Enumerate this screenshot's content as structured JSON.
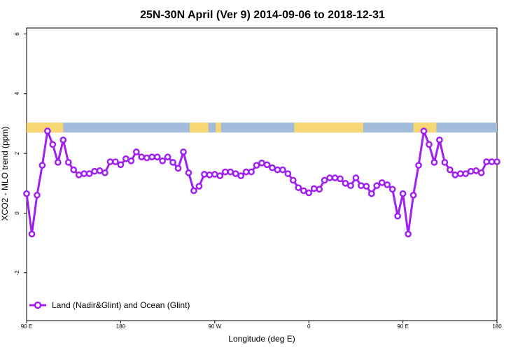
{
  "chart_data": {
    "type": "line",
    "title": "25N-30N April (Ver 9)   2014-09-06 to 2018-12-31",
    "xlabel": "Longitude (deg E)",
    "ylabel": "XCO2 - MLO trend (ppm)",
    "xlim": [
      90,
      540
    ],
    "ylim": [
      -3.6,
      6.2
    ],
    "x_ticks": [
      {
        "value": 90,
        "label": "90 E"
      },
      {
        "value": 180,
        "label": "180"
      },
      {
        "value": 270,
        "label": "90 W"
      },
      {
        "value": 360,
        "label": "0"
      },
      {
        "value": 450,
        "label": "90 E"
      },
      {
        "value": 540,
        "label": "180"
      }
    ],
    "y_ticks": [
      {
        "value": -2,
        "label": "-2"
      },
      {
        "value": 0,
        "label": "0"
      },
      {
        "value": 2,
        "label": "2"
      },
      {
        "value": 4,
        "label": "4"
      },
      {
        "value": 6,
        "label": "6"
      }
    ],
    "colors": {
      "series": "#a020f0",
      "land": "#f7d774",
      "ocean": "#a3bbdb"
    },
    "land_segments": [
      [
        90,
        125
      ],
      [
        246,
        264
      ],
      [
        271,
        276
      ],
      [
        346,
        412
      ],
      [
        460,
        482
      ]
    ],
    "series": [
      {
        "name": "Land (Nadir&Glint) and Ocean (Glint)",
        "x": [
          90,
          95,
          100,
          105,
          110,
          115,
          120,
          125,
          130,
          135,
          140,
          145,
          150,
          155,
          160,
          165,
          170,
          175,
          180,
          185,
          190,
          195,
          200,
          205,
          210,
          215,
          220,
          225,
          230,
          235,
          240,
          245,
          250,
          255,
          260,
          265,
          270,
          275,
          280,
          285,
          290,
          295,
          300,
          305,
          310,
          315,
          320,
          325,
          330,
          335,
          340,
          345,
          350,
          355,
          360,
          365,
          370,
          375,
          380,
          385,
          390,
          395,
          400,
          405,
          410,
          415,
          420,
          425,
          430,
          435,
          440,
          445,
          450,
          455,
          460,
          465,
          470,
          475,
          480,
          485,
          490,
          495,
          500,
          505,
          510,
          515,
          520,
          525,
          530,
          535,
          540
        ],
        "values": [
          0.65,
          -0.7,
          0.6,
          1.6,
          2.75,
          2.3,
          1.7,
          2.45,
          1.7,
          1.45,
          1.28,
          1.32,
          1.32,
          1.4,
          1.42,
          1.35,
          1.72,
          1.72,
          1.62,
          1.82,
          1.75,
          2.05,
          1.88,
          1.85,
          1.88,
          1.88,
          1.75,
          1.88,
          1.7,
          1.5,
          2.05,
          1.35,
          0.75,
          0.9,
          1.3,
          1.28,
          1.3,
          1.25,
          1.38,
          1.38,
          1.32,
          1.25,
          1.38,
          1.38,
          1.6,
          1.68,
          1.62,
          1.52,
          1.45,
          1.45,
          1.32,
          1.1,
          0.85,
          0.75,
          0.68,
          0.82,
          0.8,
          1.1,
          1.18,
          1.18,
          1.15,
          1.0,
          0.92,
          1.18,
          0.92,
          0.9,
          0.65,
          0.92,
          1.02,
          0.95,
          0.8,
          -0.1,
          0.65,
          -0.7,
          0.6,
          1.6,
          2.75,
          2.3,
          1.7,
          2.45,
          1.7,
          1.45,
          1.28,
          1.32,
          1.32,
          1.4,
          1.42,
          1.35,
          1.72,
          1.72,
          1.72
        ]
      }
    ],
    "legend": {
      "position": "bottom-left",
      "label": "Land (Nadir&Glint) and Ocean (Glint)"
    }
  }
}
